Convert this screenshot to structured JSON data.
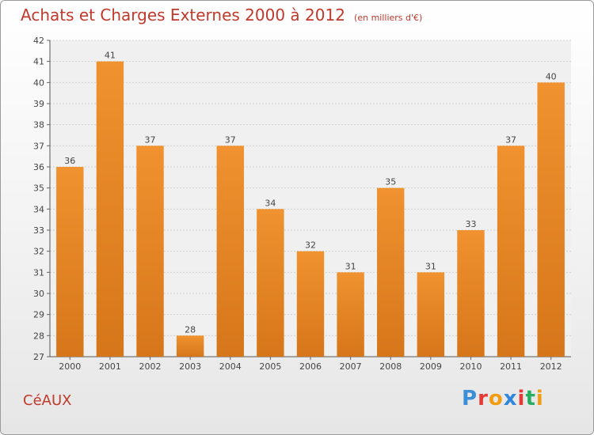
{
  "header": {
    "title": "Achats et Charges Externes 2000 à 2012",
    "subtitle": "(en milliers d'€)"
  },
  "footer": {
    "city": "CéAUX",
    "brand_letters": [
      "P",
      "r",
      "o",
      "x",
      "i",
      "t",
      "i"
    ],
    "brand_colors": [
      "#3b8fd6",
      "#e53935",
      "#f39c12",
      "#2e86de",
      "#e53935",
      "#27ae60",
      "#f39c12"
    ]
  },
  "chart_data": {
    "type": "bar",
    "categories": [
      "2000",
      "2001",
      "2002",
      "2003",
      "2004",
      "2005",
      "2006",
      "2007",
      "2008",
      "2009",
      "2010",
      "2011",
      "2012"
    ],
    "values": [
      36,
      41,
      37,
      28,
      37,
      34,
      32,
      31,
      35,
      31,
      33,
      37,
      40
    ],
    "data_labels": [
      "36",
      "41",
      "37",
      "28",
      "37",
      "34",
      "32",
      "31",
      "35",
      "31",
      "33",
      "37",
      "40"
    ],
    "yticks": [
      "27",
      "28",
      "29",
      "30",
      "31",
      "32",
      "33",
      "34",
      "35",
      "36",
      "37",
      "38",
      "39",
      "40",
      "41",
      "42"
    ],
    "ylim": [
      27,
      42
    ],
    "grid": true,
    "bar_color": "#f0922f",
    "bar_color_dark": "#d6761a"
  }
}
